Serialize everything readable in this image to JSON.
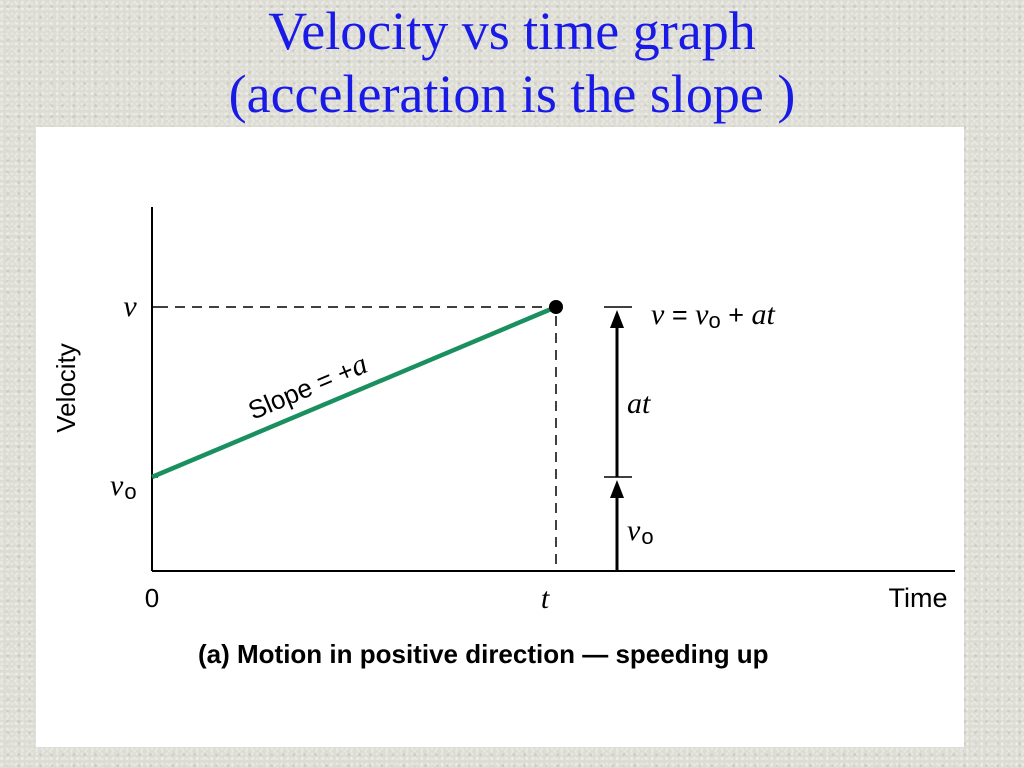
{
  "slide": {
    "title_line1": "Velocity vs time graph",
    "title_line2": "(acceleration is the slope )",
    "title_color": "#1a1ae6"
  },
  "graph": {
    "y_axis_label": "Velocity",
    "x_axis_label": "Time",
    "y_tick_v": "v",
    "y_tick_v0_main": "v",
    "y_tick_v0_sub": "o",
    "x_tick_zero": "0",
    "x_tick_t": "t",
    "slope_label_text": "Slope = +",
    "slope_label_var": "a",
    "line_color": "#1a9060",
    "equation": {
      "v": "v",
      "equals": " = ",
      "v0": "v",
      "v0_sub": "o",
      "plus": " + ",
      "at": "at"
    },
    "brace_at_label": "at",
    "brace_v0_main": "v",
    "brace_v0_sub": "o",
    "caption": "(a) Motion in positive direction — speeding up"
  }
}
